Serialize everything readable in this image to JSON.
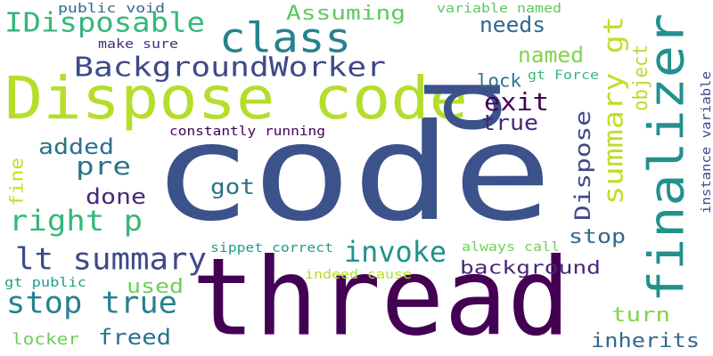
{
  "word_cloud": {
    "background": "#ffffff",
    "words": [
      {
        "text": "code",
        "color": "#3b528b"
      },
      {
        "text": "thread",
        "color": "#440154"
      },
      {
        "text": "Dispose code",
        "color": "#b5de2b"
      },
      {
        "text": "p",
        "color": "#3b528b"
      },
      {
        "text": "finalizer",
        "color": "#21918c"
      },
      {
        "text": "class",
        "color": "#26828e"
      },
      {
        "text": "BackgroundWorker",
        "color": "#3e4989"
      },
      {
        "text": "IDisposable",
        "color": "#35b779"
      },
      {
        "text": "lt summary",
        "color": "#3e4989"
      },
      {
        "text": "stop true",
        "color": "#26828e"
      },
      {
        "text": "invoke",
        "color": "#21918c"
      },
      {
        "text": "right p",
        "color": "#35b779"
      },
      {
        "text": "summary gt",
        "color": "#bddf26"
      },
      {
        "text": "Dispose",
        "color": "#3e4989"
      },
      {
        "text": "Assuming",
        "color": "#5ec962"
      },
      {
        "text": "exit",
        "color": "#440154"
      },
      {
        "text": "needs",
        "color": "#31688e"
      },
      {
        "text": "named",
        "color": "#84d44b"
      },
      {
        "text": "true",
        "color": "#482878"
      },
      {
        "text": "object",
        "color": "#b5de2b"
      },
      {
        "text": "pre",
        "color": "#2c728e"
      },
      {
        "text": "added",
        "color": "#2c728e"
      },
      {
        "text": "got",
        "color": "#2c728e"
      },
      {
        "text": "done",
        "color": "#482878"
      },
      {
        "text": "fine",
        "color": "#c8e020"
      },
      {
        "text": "lock",
        "color": "#2c728e"
      },
      {
        "text": "stop",
        "color": "#31688e"
      },
      {
        "text": "background",
        "color": "#482878"
      },
      {
        "text": "used",
        "color": "#6ece58"
      },
      {
        "text": "freed",
        "color": "#2c728e"
      },
      {
        "text": "turn",
        "color": "#84d44b"
      },
      {
        "text": "inherits",
        "color": "#31688e"
      },
      {
        "text": "locker",
        "color": "#6ece58"
      },
      {
        "text": "public void",
        "color": "#31688e"
      },
      {
        "text": "make sure",
        "color": "#472d7b"
      },
      {
        "text": "variable named",
        "color": "#5ec962"
      },
      {
        "text": "gt Force",
        "color": "#35b779"
      },
      {
        "text": "constantly running",
        "color": "#440154"
      },
      {
        "text": "instance variable",
        "color": "#3e4989"
      },
      {
        "text": "sippet correct",
        "color": "#1f9e89"
      },
      {
        "text": "always call",
        "color": "#6ece58"
      },
      {
        "text": "indeed cause",
        "color": "#b5de2b"
      },
      {
        "text": "gt public",
        "color": "#1f9e89"
      }
    ]
  }
}
